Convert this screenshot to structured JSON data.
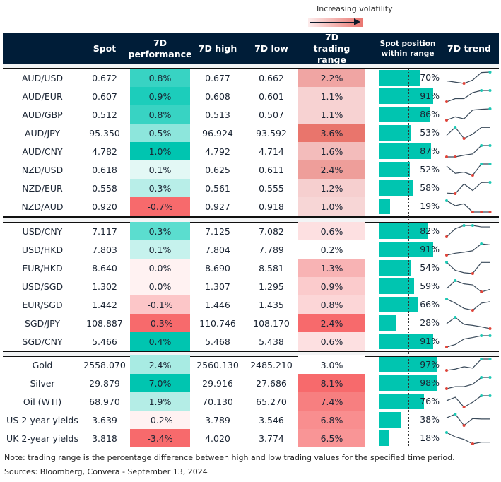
{
  "legend": {
    "label": "Increasing volatility"
  },
  "headers": {
    "spot": "Spot",
    "perf": "7D performance",
    "high": "7D high",
    "low": "7D low",
    "range": "7D trading range",
    "position": "Spot position within range",
    "trend": "7D trend"
  },
  "colors": {
    "header": "#001d38",
    "bar": "#00c5b0",
    "trend_line": "#3a4a5a",
    "trend_high": "#1ec9b5",
    "trend_low": "#e0443a"
  },
  "groups": [
    [
      {
        "name": "AUD/USD",
        "spot": "0.672",
        "perf": "0.8%",
        "perf_color": "#38d3c3",
        "high": "0.677",
        "low": "0.662",
        "range": "2.2%",
        "range_color": "#f0a5a3",
        "position": 70,
        "position_label": "70%",
        "trend": [
          0.22,
          0.11,
          0,
          0.29,
          0.96,
          1
        ]
      },
      {
        "name": "AUD/EUR",
        "spot": "0.607",
        "perf": "0.9%",
        "perf_color": "#1ccdbb",
        "high": "0.608",
        "low": "0.601",
        "range": "1.1%",
        "range_color": "#f7d2d2",
        "position": 91,
        "position_label": "91%",
        "trend": [
          0,
          0.28,
          0.28,
          0.81,
          1,
          1
        ]
      },
      {
        "name": "AUD/GBP",
        "spot": "0.512",
        "perf": "0.8%",
        "perf_color": "#38d3c3",
        "high": "0.513",
        "low": "0.507",
        "range": "1.1%",
        "range_color": "#f7d2d2",
        "position": 86,
        "position_label": "86%",
        "trend": [
          0,
          0.29,
          0.11,
          0.89,
          0.96,
          1
        ]
      },
      {
        "name": "AUD/JPY",
        "spot": "95.350",
        "perf": "0.5%",
        "perf_color": "#8de6dc",
        "high": "96.924",
        "low": "93.592",
        "range": "3.6%",
        "range_color": "#e9756c",
        "position": 53,
        "position_label": "53%",
        "trend": [
          0.28,
          1,
          0,
          0.39,
          0.98,
          0.98
        ]
      },
      {
        "name": "AUD/CNY",
        "spot": "4.782",
        "perf": "1.0%",
        "perf_color": "#00c5b0",
        "high": "4.792",
        "low": "4.714",
        "range": "1.6%",
        "range_color": "#f3bcbb",
        "position": 87,
        "position_label": "87%",
        "trend": [
          0,
          0,
          0.15,
          0.26,
          1,
          1
        ]
      },
      {
        "name": "NZD/USD",
        "spot": "0.618",
        "perf": "0.1%",
        "perf_color": "#e3f8f5",
        "high": "0.625",
        "low": "0.611",
        "range": "2.4%",
        "range_color": "#ee9e9a",
        "position": 52,
        "position_label": "52%",
        "trend": [
          0.81,
          0.17,
          0.28,
          0,
          1,
          1
        ]
      },
      {
        "name": "NZD/EUR",
        "spot": "0.558",
        "perf": "0.3%",
        "perf_color": "#b8eee8",
        "high": "0.561",
        "low": "0.555",
        "range": "1.2%",
        "range_color": "#f6cfcf",
        "position": 58,
        "position_label": "58%",
        "trend": [
          0.05,
          0,
          0.86,
          0.28,
          0.98,
          1
        ]
      },
      {
        "name": "NZD/AUD",
        "spot": "0.920",
        "perf": "-0.7%",
        "perf_color": "#f76a6c",
        "high": "0.927",
        "low": "0.918",
        "range": "1.0%",
        "range_color": "#f7d6d6",
        "position": 19,
        "position_label": "19%",
        "trend": [
          1,
          0.56,
          0.73,
          0,
          0,
          0
        ]
      }
    ],
    [
      {
        "name": "USD/CNY",
        "spot": "7.117",
        "perf": "0.3%",
        "perf_color": "#5bddcf",
        "high": "7.125",
        "low": "7.082",
        "range": "0.6%",
        "range_color": "#fde0e1",
        "position": 82,
        "position_label": "82%",
        "trend": [
          0,
          0.71,
          1,
          1,
          0.87,
          0.87
        ]
      },
      {
        "name": "USD/HKD",
        "spot": "7.803",
        "perf": "0.1%",
        "perf_color": "#c6f2ed",
        "high": "7.804",
        "low": "7.789",
        "range": "0.2%",
        "range_color": "#ffffff",
        "position": 91,
        "position_label": "91%",
        "trend": [
          0,
          0.17,
          0.26,
          0.39,
          1,
          0.91
        ]
      },
      {
        "name": "EUR/HKD",
        "spot": "8.640",
        "perf": "0.0%",
        "perf_color": "#fff2f2",
        "high": "8.690",
        "low": "8.581",
        "range": "1.3%",
        "range_color": "#f8b3b4",
        "position": 54,
        "position_label": "54%",
        "trend": [
          1,
          0.28,
          0.07,
          0,
          0.98,
          0.98
        ]
      },
      {
        "name": "USD/SGD",
        "spot": "1.302",
        "perf": "0.0%",
        "perf_color": "#fff2f2",
        "high": "1.307",
        "low": "1.295",
        "range": "0.9%",
        "range_color": "#fbcbcc",
        "position": 59,
        "position_label": "59%",
        "trend": [
          0.29,
          1,
          0.71,
          0.62,
          0,
          0.22
        ]
      },
      {
        "name": "EUR/SGD",
        "spot": "1.442",
        "perf": "-0.1%",
        "perf_color": "#fcc6c8",
        "high": "1.446",
        "low": "1.435",
        "range": "0.8%",
        "range_color": "#fcd6d7",
        "position": 66,
        "position_label": "66%",
        "trend": [
          1,
          0.63,
          0.17,
          0,
          0.63,
          0.76
        ]
      },
      {
        "name": "SGD/JPY",
        "spot": "108.887",
        "perf": "-0.3%",
        "perf_color": "#f76a6c",
        "high": "110.746",
        "low": "108.170",
        "range": "2.4%",
        "range_color": "#f76a6c",
        "position": 28,
        "position_label": "28%",
        "trend": [
          0.44,
          1,
          0.38,
          0.29,
          0.16,
          0
        ]
      },
      {
        "name": "SGD/CNY",
        "spot": "5.466",
        "perf": "0.4%",
        "perf_color": "#00c5b0",
        "high": "5.468",
        "low": "5.438",
        "range": "0.6%",
        "range_color": "#fde0e1",
        "position": 91,
        "position_label": "91%",
        "trend": [
          0,
          0.22,
          0.71,
          0.84,
          1,
          1
        ]
      }
    ],
    [
      {
        "name": "Gold",
        "spot": "2558.070",
        "perf": "2.4%",
        "perf_color": "#a8ebe3",
        "high": "2560.130",
        "low": "2485.210",
        "range": "3.0%",
        "range_color": "#ffffff",
        "position": 97,
        "position_label": "97%",
        "trend": [
          0,
          0.11,
          0.32,
          0.2,
          1,
          1
        ]
      },
      {
        "name": "Silver",
        "spot": "29.879",
        "perf": "7.0%",
        "perf_color": "#00c5b0",
        "high": "29.916",
        "low": "27.686",
        "range": "8.1%",
        "range_color": "#f76a6c",
        "position": 98,
        "position_label": "98%",
        "trend": [
          0,
          0.18,
          0.18,
          0.39,
          1,
          1
        ]
      },
      {
        "name": "Oil (WTI)",
        "spot": "68.970",
        "perf": "1.9%",
        "perf_color": "#b4ede6",
        "high": "70.130",
        "low": "65.270",
        "range": "7.4%",
        "range_color": "#f77f80",
        "position": 76,
        "position_label": "76%",
        "trend": [
          0.57,
          0.87,
          0,
          0.43,
          1,
          1
        ]
      },
      {
        "name": "US 2-year yields",
        "spot": "3.639",
        "perf": "-0.2%",
        "perf_color": "#fff2f2",
        "high": "3.789",
        "low": "3.546",
        "range": "6.8%",
        "range_color": "#f98e8f",
        "position": 38,
        "position_label": "38%",
        "trend": [
          0.67,
          1,
          0,
          0.61,
          0.57,
          0.57
        ]
      },
      {
        "name": "UK 2-year yields",
        "spot": "3.818",
        "perf": "-3.4%",
        "perf_color": "#f76a6c",
        "high": "4.020",
        "low": "3.774",
        "range": "6.5%",
        "range_color": "#f99596",
        "position": 18,
        "position_label": "18%",
        "trend": [
          1,
          0.61,
          0.39,
          0,
          0.15,
          0.15
        ]
      }
    ]
  ],
  "footer": {
    "note": "Note: trading range is the percentage difference between high and low trading values for the specified time period.",
    "sources": "Sources: Bloomberg, Convera - September 13, 2024"
  }
}
